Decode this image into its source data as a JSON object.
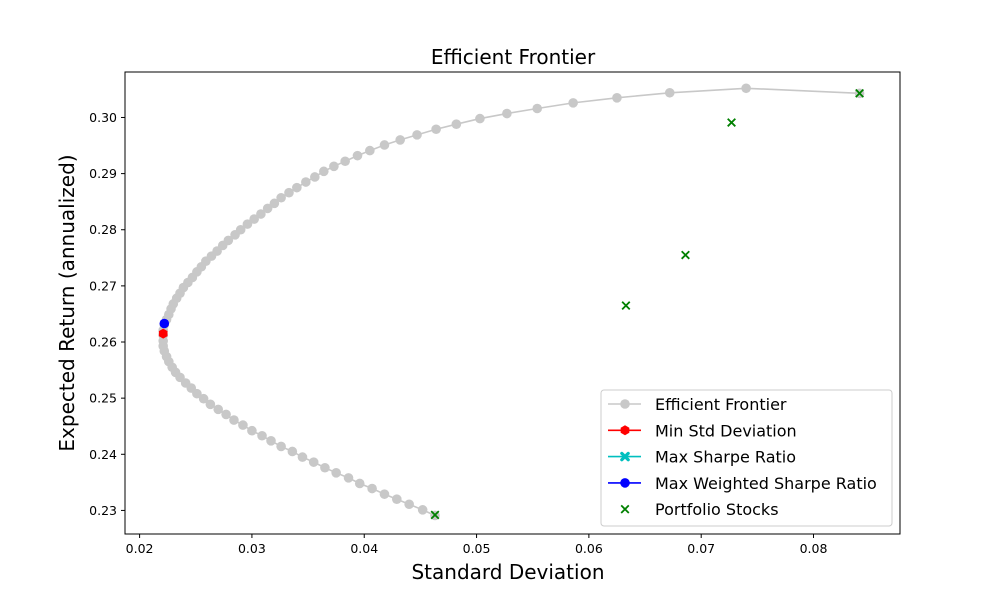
{
  "chart_data": {
    "type": "scatter",
    "title": "Efficient Frontier",
    "xlabel": "Standard Deviation",
    "ylabel": "Expected Return (annualized)",
    "xlim": [
      0.0187,
      0.0877
    ],
    "ylim": [
      0.2258,
      0.3081
    ],
    "xticks": [
      0.02,
      0.03,
      0.04,
      0.05,
      0.06,
      0.07,
      0.08
    ],
    "xtick_labels": [
      "0.02",
      "0.03",
      "0.04",
      "0.05",
      "0.06",
      "0.07",
      "0.08"
    ],
    "yticks": [
      0.23,
      0.24,
      0.25,
      0.26,
      0.27,
      0.28,
      0.29,
      0.3
    ],
    "ytick_labels": [
      "0.23",
      "0.24",
      "0.25",
      "0.26",
      "0.27",
      "0.28",
      "0.29",
      "0.30"
    ],
    "grid": false,
    "legend_position": "lower-right",
    "series": [
      {
        "name": "Efficient Frontier",
        "kind": "line-marker",
        "color": "#c8c8c8",
        "marker": "circle",
        "points": [
          [
            0.0463,
            0.2291
          ],
          [
            0.0452,
            0.2301
          ],
          [
            0.044,
            0.2311
          ],
          [
            0.0429,
            0.232
          ],
          [
            0.0418,
            0.2329
          ],
          [
            0.0407,
            0.2339
          ],
          [
            0.0396,
            0.2348
          ],
          [
            0.0386,
            0.2358
          ],
          [
            0.0375,
            0.2367
          ],
          [
            0.0365,
            0.2376
          ],
          [
            0.0355,
            0.2386
          ],
          [
            0.0345,
            0.2395
          ],
          [
            0.0336,
            0.2405
          ],
          [
            0.0326,
            0.2414
          ],
          [
            0.0317,
            0.2424
          ],
          [
            0.0309,
            0.2433
          ],
          [
            0.03,
            0.2442
          ],
          [
            0.0292,
            0.2452
          ],
          [
            0.0284,
            0.2461
          ],
          [
            0.0277,
            0.2471
          ],
          [
            0.027,
            0.248
          ],
          [
            0.0263,
            0.2489
          ],
          [
            0.0257,
            0.2499
          ],
          [
            0.0251,
            0.2508
          ],
          [
            0.0246,
            0.2518
          ],
          [
            0.0241,
            0.2527
          ],
          [
            0.0236,
            0.2537
          ],
          [
            0.0232,
            0.2546
          ],
          [
            0.0229,
            0.2555
          ],
          [
            0.0226,
            0.2565
          ],
          [
            0.0224,
            0.2574
          ],
          [
            0.0222,
            0.2584
          ],
          [
            0.0221,
            0.2593
          ],
          [
            0.0221,
            0.2602
          ],
          [
            0.0221,
            0.2612
          ],
          [
            0.0221,
            0.2621
          ],
          [
            0.0222,
            0.2631
          ],
          [
            0.0224,
            0.264
          ],
          [
            0.0226,
            0.2649
          ],
          [
            0.0228,
            0.2659
          ],
          [
            0.023,
            0.2668
          ],
          [
            0.0233,
            0.2678
          ],
          [
            0.0236,
            0.2687
          ],
          [
            0.0239,
            0.2697
          ],
          [
            0.0243,
            0.2706
          ],
          [
            0.0247,
            0.2715
          ],
          [
            0.0251,
            0.2725
          ],
          [
            0.0255,
            0.2734
          ],
          [
            0.0259,
            0.2744
          ],
          [
            0.0264,
            0.2753
          ],
          [
            0.0269,
            0.2762
          ],
          [
            0.0274,
            0.2772
          ],
          [
            0.0279,
            0.2781
          ],
          [
            0.0285,
            0.2791
          ],
          [
            0.029,
            0.28
          ],
          [
            0.0296,
            0.281
          ],
          [
            0.0302,
            0.2819
          ],
          [
            0.0308,
            0.2828
          ],
          [
            0.0314,
            0.2838
          ],
          [
            0.032,
            0.2847
          ],
          [
            0.0326,
            0.2857
          ],
          [
            0.0333,
            0.2866
          ],
          [
            0.034,
            0.2875
          ],
          [
            0.0348,
            0.2885
          ],
          [
            0.0356,
            0.2894
          ],
          [
            0.0364,
            0.2904
          ],
          [
            0.0373,
            0.2913
          ],
          [
            0.0383,
            0.2922
          ],
          [
            0.0394,
            0.2932
          ],
          [
            0.0405,
            0.2941
          ],
          [
            0.0418,
            0.2951
          ],
          [
            0.0432,
            0.296
          ],
          [
            0.0447,
            0.2969
          ],
          [
            0.0464,
            0.2979
          ],
          [
            0.0482,
            0.2988
          ],
          [
            0.0503,
            0.2998
          ],
          [
            0.0527,
            0.3007
          ],
          [
            0.0554,
            0.3016
          ],
          [
            0.0586,
            0.3026
          ],
          [
            0.0625,
            0.3035
          ],
          [
            0.0672,
            0.3044
          ],
          [
            0.074,
            0.3052
          ],
          [
            0.0841,
            0.3043
          ]
        ]
      },
      {
        "name": "Min Std Deviation",
        "kind": "line-marker",
        "color": "#ff0000",
        "marker": "hexagon",
        "points": [
          [
            0.0221,
            0.2615
          ]
        ]
      },
      {
        "name": "Max Sharpe Ratio",
        "kind": "line-marker",
        "color": "#00bfbf",
        "marker": "x-filled",
        "points": []
      },
      {
        "name": "Max Weighted Sharpe Ratio",
        "kind": "line-marker",
        "color": "#0000ff",
        "marker": "circle",
        "points": [
          [
            0.0222,
            0.2633
          ]
        ]
      },
      {
        "name": "Portfolio Stocks",
        "kind": "scatter",
        "color": "#008000",
        "marker": "x",
        "points": [
          [
            0.0463,
            0.2292
          ],
          [
            0.0633,
            0.2665
          ],
          [
            0.0686,
            0.2755
          ],
          [
            0.0727,
            0.2991
          ],
          [
            0.0841,
            0.3043
          ]
        ]
      }
    ]
  }
}
